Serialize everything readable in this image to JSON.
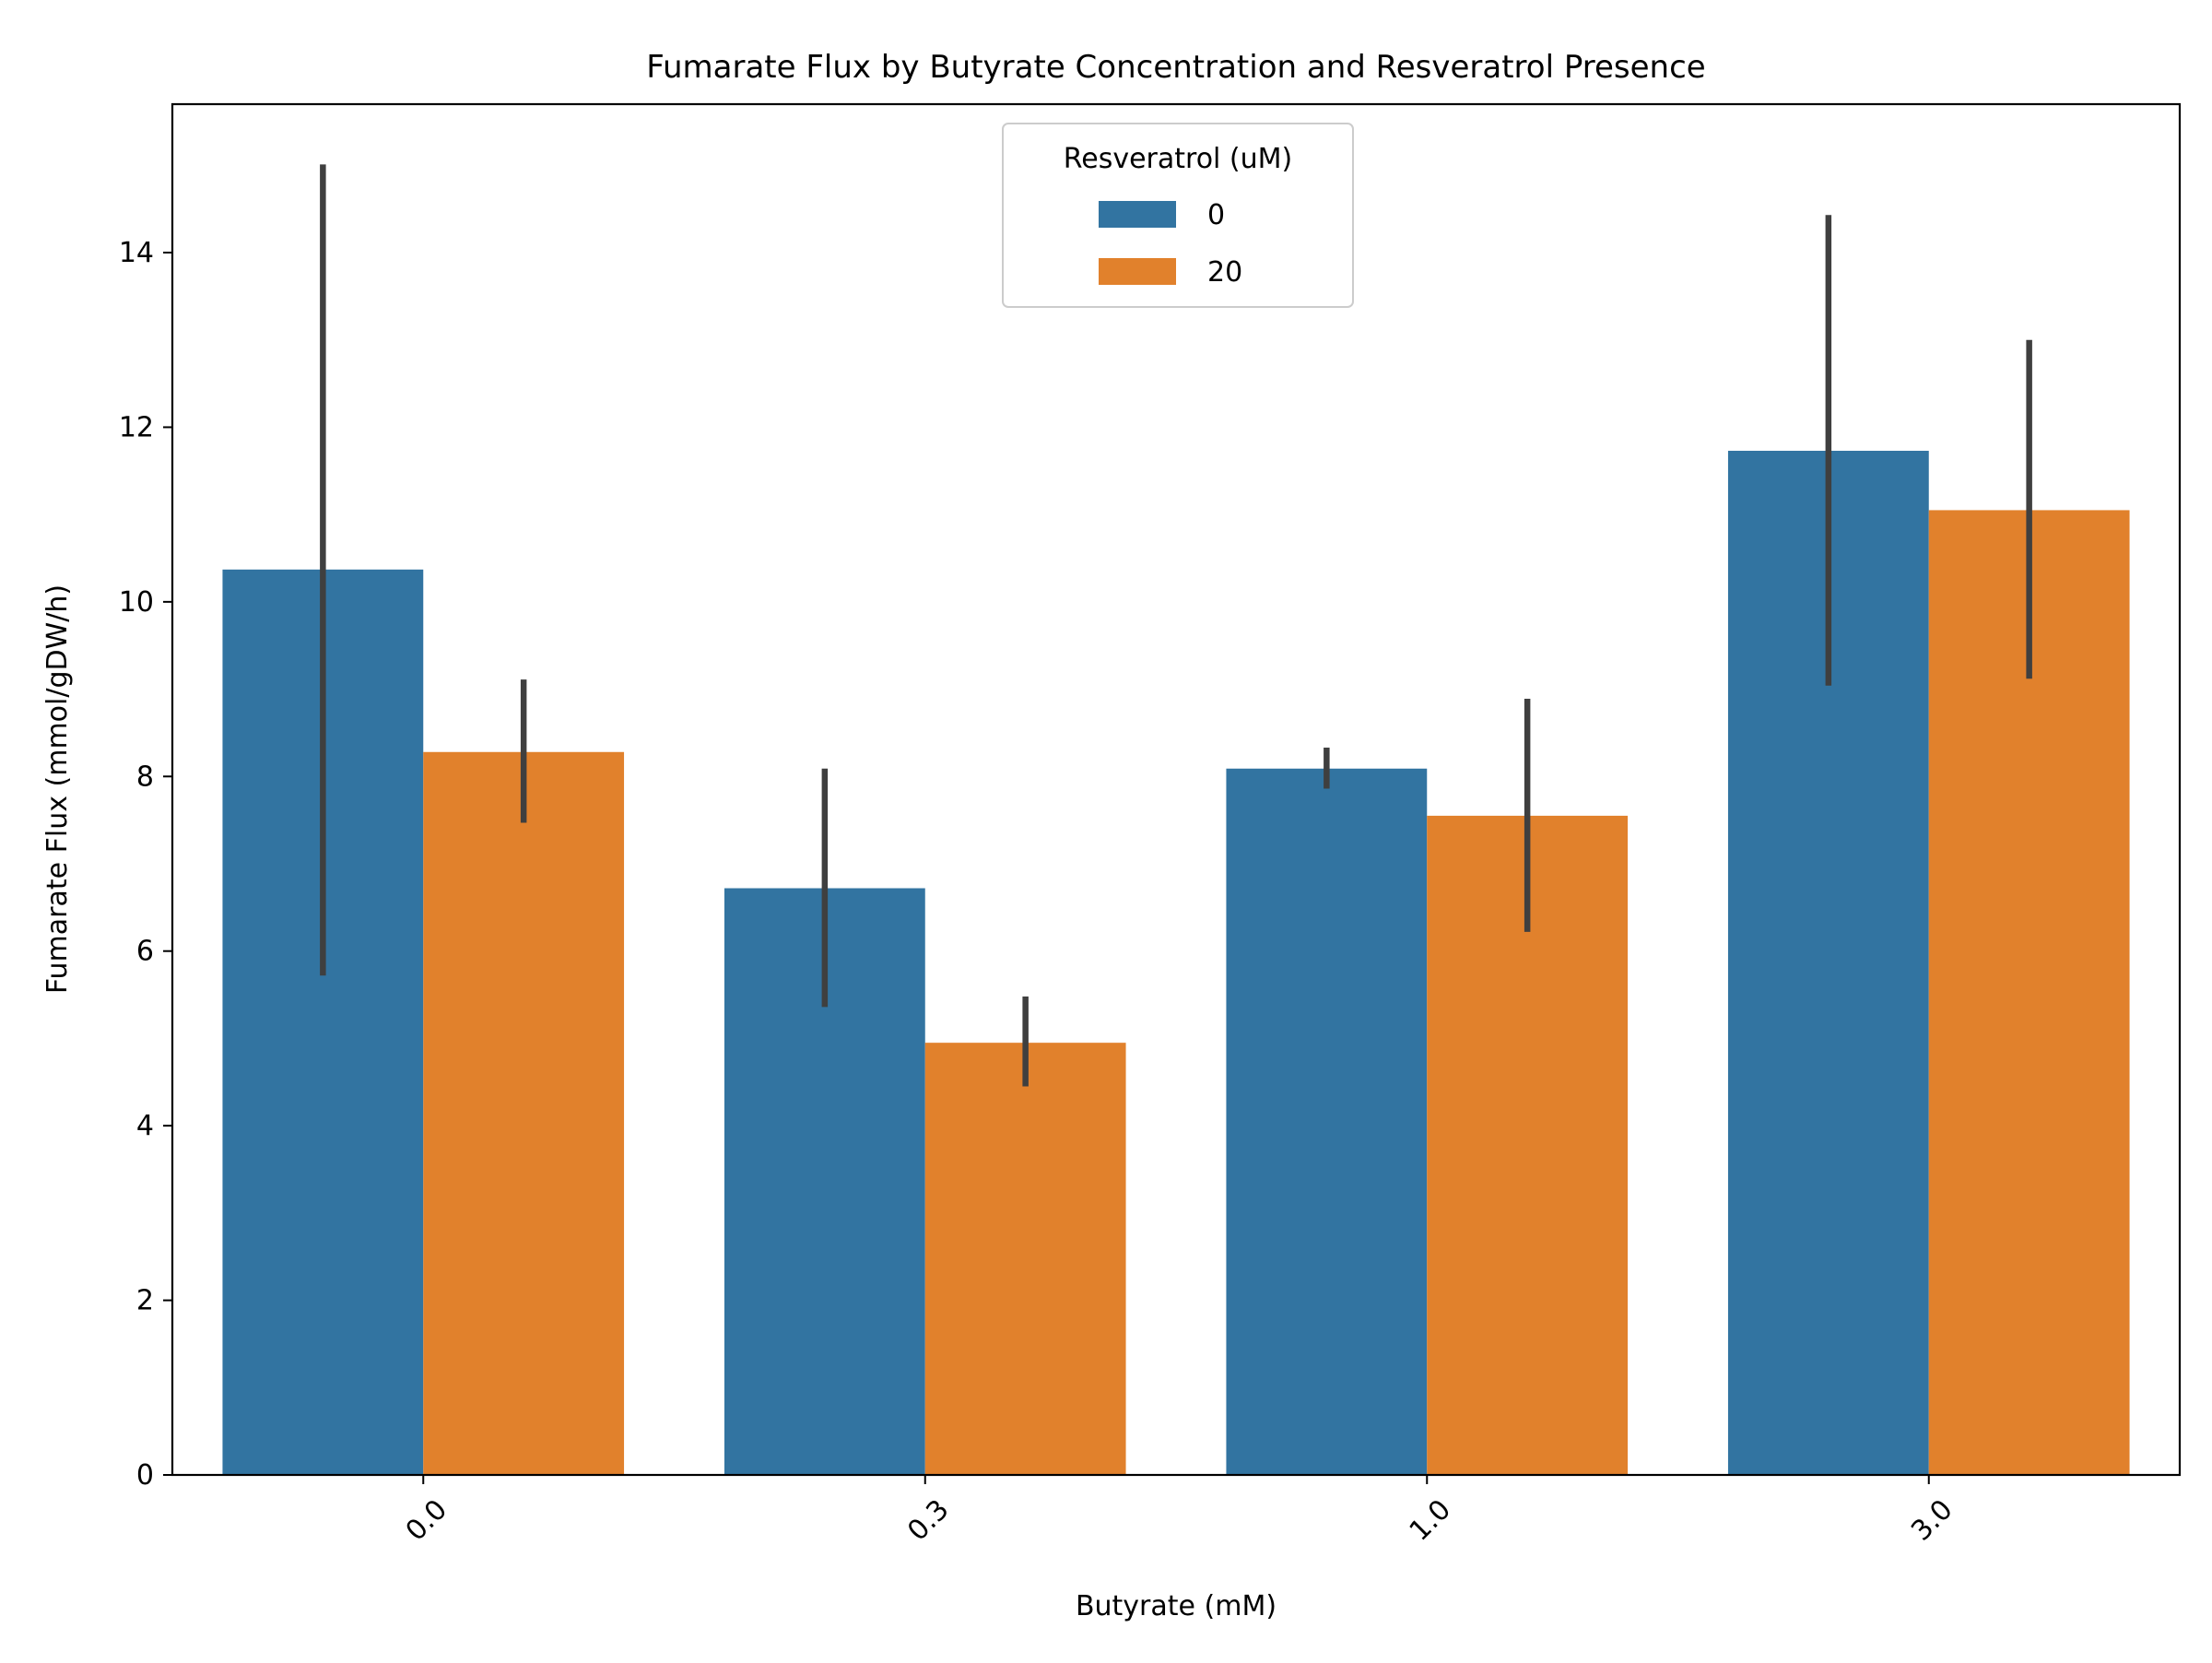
{
  "chart_data": {
    "type": "bar",
    "title": "Fumarate Flux by Butyrate Concentration and Resveratrol Presence",
    "xlabel": "Butyrate (mM)",
    "ylabel": "Fumarate Flux (mmol/gDW/h)",
    "categories": [
      "0.0",
      "0.3",
      "1.0",
      "3.0"
    ],
    "ylim": [
      0,
      15.7
    ],
    "yticks": [
      0,
      2,
      4,
      6,
      8,
      10,
      12,
      14
    ],
    "grid": false,
    "legend": {
      "title": "Resveratrol (uM)",
      "placement": "upper-center"
    },
    "series": [
      {
        "name": "0",
        "color": "#3274a1",
        "values": [
          10.37,
          6.72,
          8.09,
          11.73
        ],
        "error_low": [
          5.72,
          5.36,
          7.86,
          9.04
        ],
        "error_high": [
          15.01,
          8.09,
          8.33,
          14.43
        ]
      },
      {
        "name": "20",
        "color": "#e1812c",
        "values": [
          8.28,
          4.95,
          7.55,
          11.05
        ],
        "error_low": [
          7.47,
          4.45,
          6.22,
          9.12
        ],
        "error_high": [
          9.11,
          5.48,
          8.89,
          13.0
        ]
      }
    ],
    "error_bar_color": "#3f3f3f"
  }
}
